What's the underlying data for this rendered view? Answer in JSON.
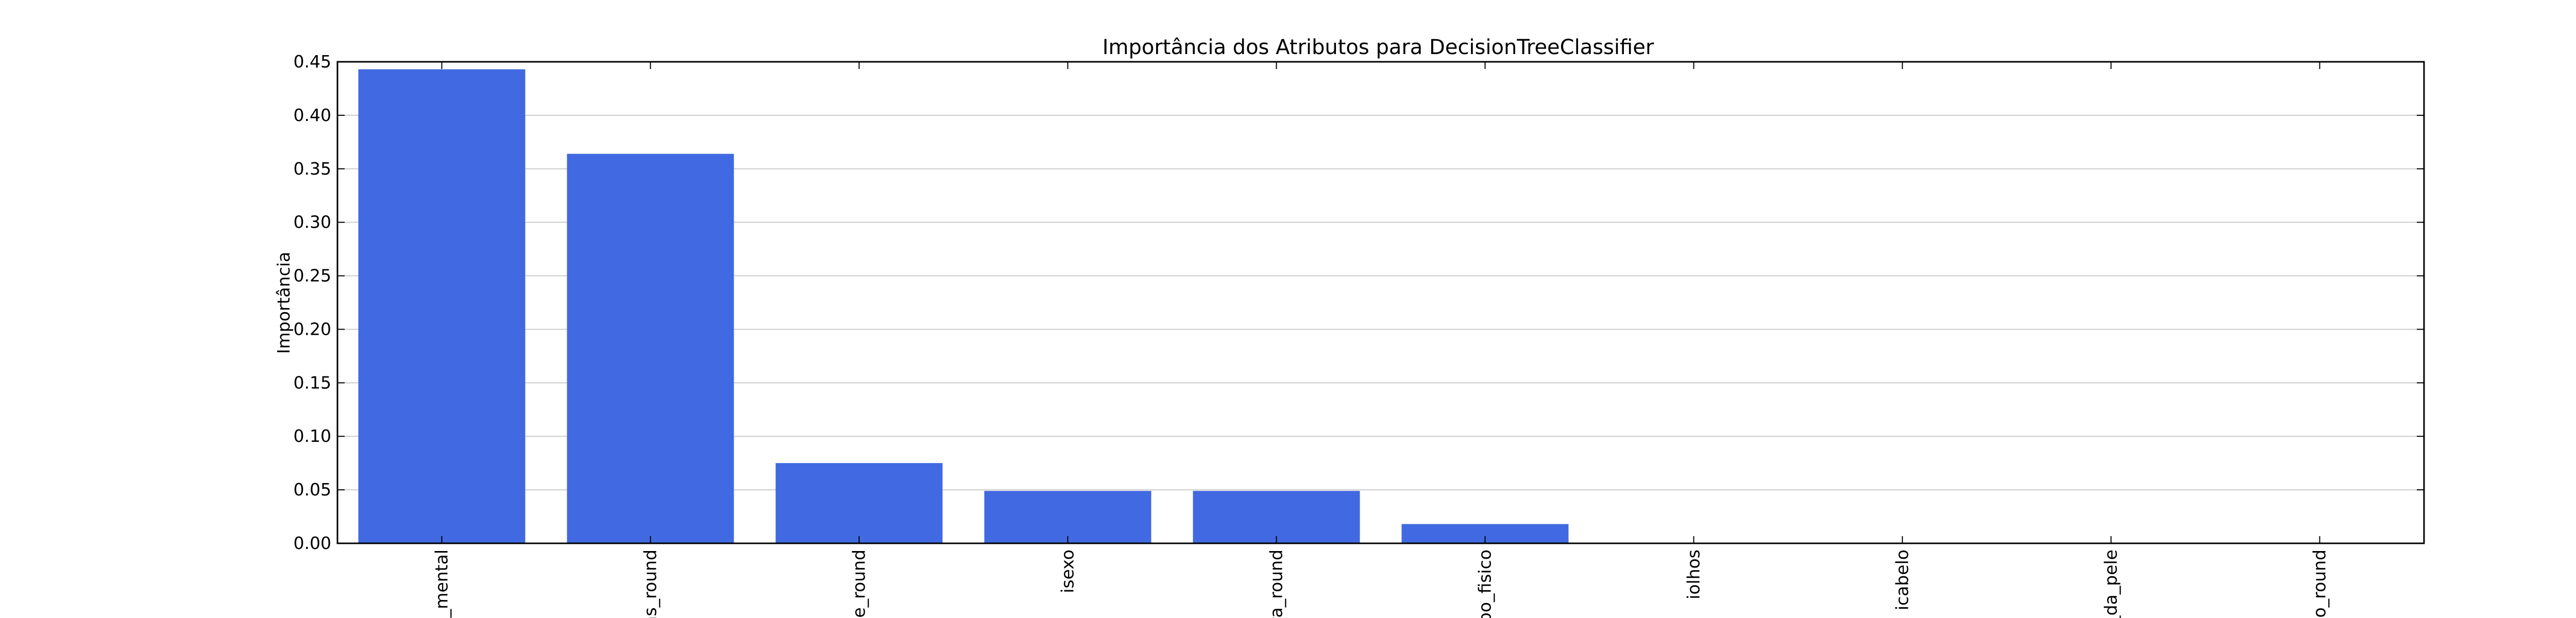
{
  "chart_data": {
    "type": "bar",
    "title": "Importância dos Atributos para DecisionTreeClassifier",
    "xlabel": "",
    "ylabel": "Importância",
    "categories": [
      "io_mental",
      "ias_round",
      "de_round",
      "isexo",
      "ura_round",
      "tipo_fisico",
      "iolhos",
      "icabelo",
      "r_da_pele",
      "eso_round"
    ],
    "values": [
      0.443,
      0.364,
      0.075,
      0.049,
      0.049,
      0.018,
      0.0,
      0.0,
      0.0,
      0.0
    ],
    "ylim": [
      0,
      0.45
    ],
    "yticks": [
      "0.00",
      "0.05",
      "0.10",
      "0.15",
      "0.20",
      "0.25",
      "0.30",
      "0.35",
      "0.40",
      "0.45"
    ],
    "grid": "horizontal",
    "bar_color": "#4169e1",
    "grid_color": "#cccccc",
    "frame_color": "#000000"
  }
}
